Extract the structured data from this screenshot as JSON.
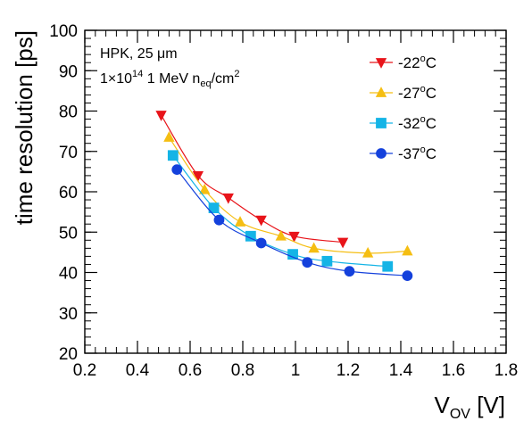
{
  "chart_data": {
    "type": "line",
    "xlabel": "V",
    "xlabel_sub": "OV",
    "xlabel_unit": " [V]",
    "ylabel": "time resolution [ps]",
    "xlim": [
      0.2,
      1.8
    ],
    "ylim": [
      20,
      100
    ],
    "x_ticks": [
      0.2,
      0.4,
      0.6,
      0.8,
      1.0,
      1.2,
      1.4,
      1.6,
      1.8
    ],
    "x_tick_labels": [
      "0.2",
      "0.4",
      "0.6",
      "0.8",
      "1",
      "1.2",
      "1.4",
      "1.6",
      "1.8"
    ],
    "y_ticks": [
      20,
      30,
      40,
      50,
      60,
      70,
      80,
      90,
      100
    ],
    "y_tick_labels": [
      "20",
      "30",
      "40",
      "50",
      "60",
      "70",
      "80",
      "90",
      "100"
    ],
    "grid": false,
    "legend_position": "top-right",
    "annotations": {
      "line1": "HPK, 25 μm",
      "line2_prefix": "1×10",
      "line2_exp": "14",
      "line2_mid": " 1 MeV n",
      "line2_sub": "eq",
      "line2_unit": "/cm",
      "line2_unit_exp": "2"
    },
    "series": [
      {
        "name": "-22",
        "name_sup": "o",
        "name_suffix": "C",
        "color": "#e8141a",
        "marker": "triangle-down",
        "x": [
          0.49,
          0.63,
          0.745,
          0.87,
          0.995,
          1.18
        ],
        "y": [
          79.0,
          64.0,
          58.5,
          53.0,
          49.0,
          47.5
        ]
      },
      {
        "name": "-27",
        "name_sup": "o",
        "name_suffix": "C",
        "color": "#f5be12",
        "marker": "triangle-up",
        "x": [
          0.52,
          0.655,
          0.79,
          0.945,
          1.07,
          1.275,
          1.425
        ],
        "y": [
          73.5,
          60.5,
          52.5,
          49.0,
          46.0,
          44.8,
          45.3
        ]
      },
      {
        "name": "-32",
        "name_sup": "o",
        "name_suffix": "C",
        "color": "#14b4e6",
        "marker": "square",
        "x": [
          0.535,
          0.69,
          0.83,
          0.99,
          1.12,
          1.35
        ],
        "y": [
          69.0,
          56.0,
          49.0,
          44.5,
          42.8,
          41.5
        ]
      },
      {
        "name": "-37",
        "name_sup": "o",
        "name_suffix": "C",
        "color": "#1441dc",
        "marker": "circle",
        "x": [
          0.55,
          0.71,
          0.87,
          1.045,
          1.205,
          1.425
        ],
        "y": [
          65.5,
          53.0,
          47.3,
          42.5,
          40.3,
          39.2
        ]
      }
    ]
  }
}
